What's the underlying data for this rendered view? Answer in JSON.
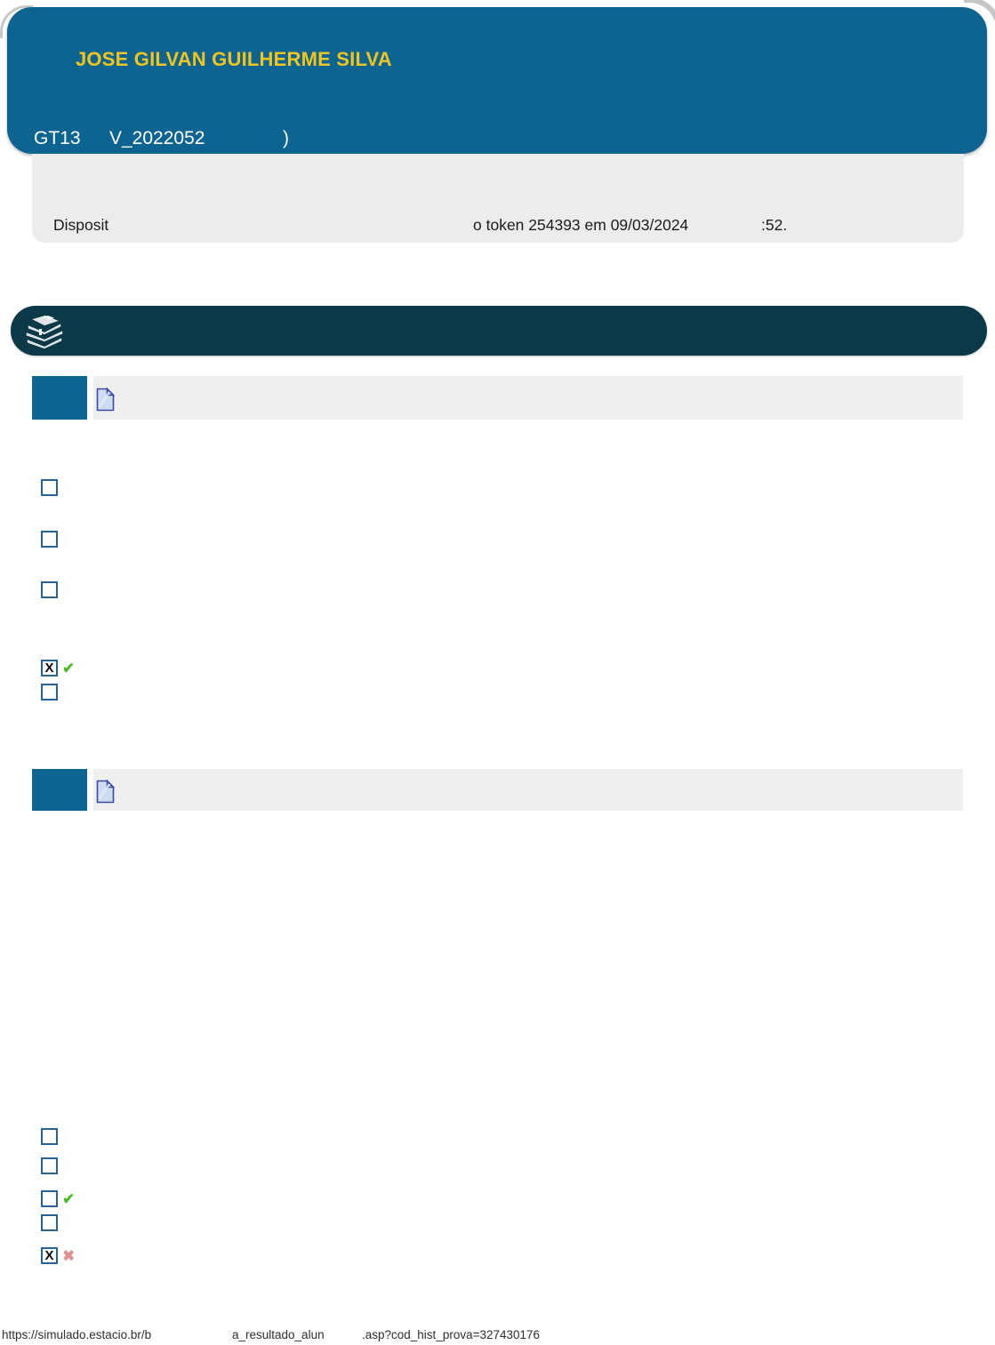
{
  "header": {
    "student_name": "JOSE GILVAN GUILHERME SILVA",
    "code_fragment_1": "GT13",
    "code_fragment_2": "V_2022052",
    "code_fragment_3": ")"
  },
  "info_box": {
    "fragment_1": "Disposit",
    "fragment_2": "o token 254393 em 09/03/2024",
    "fragment_3": ":52."
  },
  "icons": {
    "checkbox_mark": "X",
    "correct_mark": "✔",
    "wrong_mark": "✖"
  },
  "questions": [
    {
      "options": [
        {
          "checked": false,
          "result": null
        },
        {
          "checked": false,
          "result": null
        },
        {
          "checked": false,
          "result": null
        },
        {
          "checked": true,
          "result": "correct"
        },
        {
          "checked": false,
          "result": null
        }
      ]
    },
    {
      "options": [
        {
          "checked": false,
          "result": null
        },
        {
          "checked": false,
          "result": null
        },
        {
          "checked": false,
          "result": "correct"
        },
        {
          "checked": false,
          "result": null
        },
        {
          "checked": true,
          "result": "wrong"
        }
      ]
    }
  ],
  "footer": {
    "url_fragment_1": "https://simulado.estacio.br/b",
    "url_fragment_2": "a_resultado_alun",
    "url_fragment_3": ".asp?cod_hist_prova=327430176"
  },
  "colors": {
    "header_blue": "#0E6491",
    "accent_yellow": "#F1C51D",
    "section_teal": "#0B3947",
    "info_gray": "#ECECEC",
    "question_bar_gray": "#EFEFEF",
    "checkbox_border": "#2B6295",
    "correct_green": "#3FBA16",
    "wrong_red": "#DC8F8F"
  }
}
